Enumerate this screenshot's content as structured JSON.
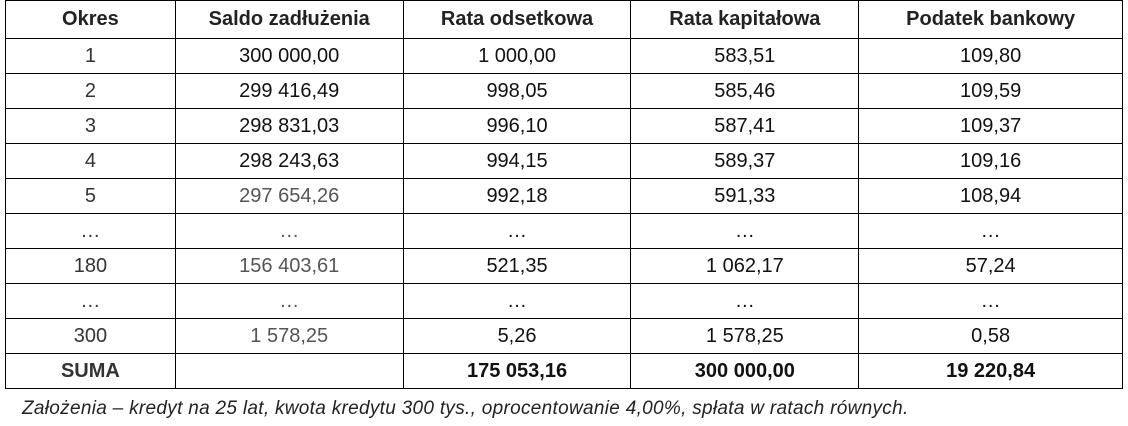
{
  "table": {
    "headers": [
      "Okres",
      "Saldo zadłużenia",
      "Rata odsetkowa",
      "Rata kapitałowa",
      "Podatek bankowy"
    ],
    "rows": [
      [
        "1",
        "300 000,00",
        "1 000,00",
        "583,51",
        "109,80"
      ],
      [
        "2",
        "299 416,49",
        "998,05",
        "585,46",
        "109,59"
      ],
      [
        "3",
        "298 831,03",
        "996,10",
        "587,41",
        "109,37"
      ],
      [
        "4",
        "298 243,63",
        "994,15",
        "589,37",
        "109,16"
      ],
      [
        "5",
        "297 654,26",
        "992,18",
        "591,33",
        "108,94"
      ],
      [
        "…",
        "…",
        "…",
        "…",
        "…"
      ],
      [
        "180",
        "156 403,61",
        "521,35",
        "1 062,17",
        "57,24"
      ],
      [
        "…",
        "…",
        "…",
        "…",
        "…"
      ],
      [
        "300",
        "1 578,25",
        "5,26",
        "1 578,25",
        "0,58"
      ]
    ],
    "sum": {
      "label": "SUMA",
      "interest": "175 053,16",
      "capital": "300 000,00",
      "tax": "19 220,84"
    }
  },
  "caption": "Założenia – kredyt na 25 lat, kwota kredytu 300 tys., oprocentowanie 4,00%, spłata w ratach równych."
}
